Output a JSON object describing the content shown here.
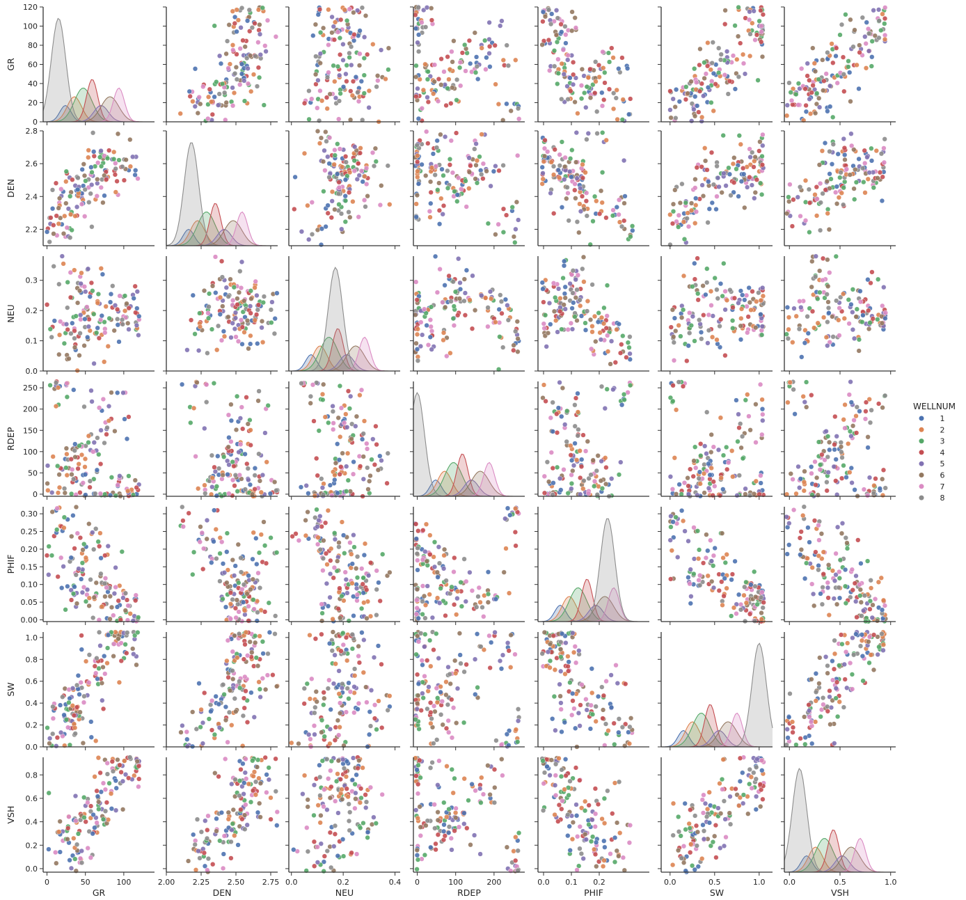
{
  "chart_data": {
    "type": "scatter",
    "kind": "pairplot",
    "variables": [
      "GR",
      "DEN",
      "NEU",
      "RDEP",
      "PHIF",
      "SW",
      "VSH"
    ],
    "diagonal": "kde",
    "grid": false,
    "legend": {
      "title": "WELLNUM",
      "placement": "right",
      "entries": [
        {
          "label": "1",
          "color": "#4c72b0"
        },
        {
          "label": "2",
          "color": "#dd8452"
        },
        {
          "label": "3",
          "color": "#55a868"
        },
        {
          "label": "4",
          "color": "#c44e52"
        },
        {
          "label": "5",
          "color": "#8172b3"
        },
        {
          "label": "6",
          "color": "#937860"
        },
        {
          "label": "7",
          "color": "#da8bc3"
        },
        {
          "label": "8",
          "color": "#8c8c8c"
        }
      ]
    },
    "axes": {
      "GR": {
        "range": [
          -5,
          140
        ],
        "ticks": [
          0,
          50,
          100
        ],
        "tick_labels": [
          "0",
          "50",
          "100"
        ],
        "yrange": [
          0,
          120
        ],
        "yticks": [
          0,
          20,
          40,
          60,
          80,
          100,
          120
        ],
        "ytick_labels": [
          "0",
          "20",
          "40",
          "60",
          "80",
          "100",
          "120"
        ]
      },
      "DEN": {
        "range": [
          2.0,
          2.8
        ],
        "ticks": [
          2.0,
          2.25,
          2.5,
          2.75
        ],
        "tick_labels": [
          "2.00",
          "2.25",
          "2.50",
          "2.75"
        ],
        "yrange": [
          2.1,
          2.8
        ],
        "yticks": [
          2.2,
          2.4,
          2.6,
          2.8
        ],
        "ytick_labels": [
          "2.2",
          "2.4",
          "2.6",
          "2.8"
        ]
      },
      "NEU": {
        "range": [
          -0.01,
          0.42
        ],
        "ticks": [
          0.0,
          0.2,
          0.4
        ],
        "tick_labels": [
          "0.0",
          "0.2",
          "0.4"
        ],
        "yrange": [
          0.0,
          0.38
        ],
        "yticks": [
          0.0,
          0.1,
          0.2,
          0.3
        ],
        "ytick_labels": [
          "0.0",
          "0.1",
          "0.2",
          "0.3"
        ]
      },
      "RDEP": {
        "range": [
          -10,
          280
        ],
        "ticks": [
          0,
          100,
          200
        ],
        "tick_labels": [
          "0",
          "100",
          "200"
        ],
        "yrange": [
          -5,
          265
        ],
        "yticks": [
          0,
          50,
          100,
          150,
          200,
          250
        ],
        "ytick_labels": [
          "0",
          "50",
          "100",
          "150",
          "200",
          "250"
        ]
      },
      "PHIF": {
        "range": [
          -0.02,
          0.38
        ],
        "ticks": [
          0.0,
          0.1,
          0.2
        ],
        "tick_labels": [
          "0.0",
          "0.1",
          "0.2"
        ],
        "yrange": [
          -0.005,
          0.32
        ],
        "yticks": [
          0.0,
          0.05,
          0.1,
          0.15,
          0.2,
          0.25,
          0.3
        ],
        "ytick_labels": [
          "0.00",
          "0.05",
          "0.10",
          "0.15",
          "0.20",
          "0.25",
          "0.30"
        ]
      },
      "SW": {
        "range": [
          -0.1,
          1.15
        ],
        "ticks": [
          0.0,
          0.5,
          1.0
        ],
        "tick_labels": [
          "0.0",
          "0.5",
          "1.0"
        ],
        "yrange": [
          0.0,
          1.05
        ],
        "yticks": [
          0.0,
          0.2,
          0.4,
          0.6,
          0.8,
          1.0
        ],
        "ytick_labels": [
          "0.0",
          "0.2",
          "0.4",
          "0.6",
          "0.8",
          "1.0"
        ]
      },
      "VSH": {
        "range": [
          -0.05,
          1.05
        ],
        "ticks": [
          0.0,
          0.5,
          1.0
        ],
        "tick_labels": [
          "0.0",
          "0.5",
          "1.0"
        ],
        "yrange": [
          -0.03,
          0.95
        ],
        "yticks": [
          0.0,
          0.2,
          0.4,
          0.6,
          0.8
        ],
        "ytick_labels": [
          "0.0",
          "0.2",
          "0.4",
          "0.6",
          "0.8"
        ]
      }
    },
    "samples": {
      "GR": [
        25,
        40,
        55,
        70,
        85,
        100,
        110,
        20,
        35,
        60
      ],
      "DEN": [
        2.3,
        2.4,
        2.5,
        2.55,
        2.6,
        2.55,
        2.58,
        2.25,
        2.45,
        2.65
      ],
      "NEU": [
        0.15,
        0.2,
        0.25,
        0.22,
        0.2,
        0.18,
        0.2,
        0.1,
        0.3,
        0.12
      ],
      "RDEP": [
        10,
        50,
        100,
        150,
        200,
        5,
        2,
        250,
        80,
        20
      ],
      "PHIF": [
        0.2,
        0.15,
        0.1,
        0.08,
        0.05,
        0.04,
        0.03,
        0.28,
        0.12,
        0.22
      ],
      "SW": [
        0.2,
        0.4,
        0.6,
        0.8,
        1.0,
        1.0,
        0.9,
        0.1,
        0.3,
        0.5
      ],
      "VSH": [
        0.15,
        0.3,
        0.45,
        0.6,
        0.75,
        0.85,
        0.9,
        0.1,
        0.35,
        0.5
      ]
    },
    "diagonal_peaks": {
      "GR": {
        "label": "8",
        "x": 15
      },
      "DEN": {
        "label": "8",
        "x": 2.18
      },
      "NEU": {
        "label": "8",
        "x": 0.17
      },
      "RDEP": {
        "label": "1",
        "x": 0
      },
      "PHIF": {
        "label": "8",
        "x": 0.23
      },
      "SW": {
        "label": "1",
        "x": 1.0
      },
      "VSH": {
        "label": "8",
        "x": 0.1
      }
    }
  }
}
